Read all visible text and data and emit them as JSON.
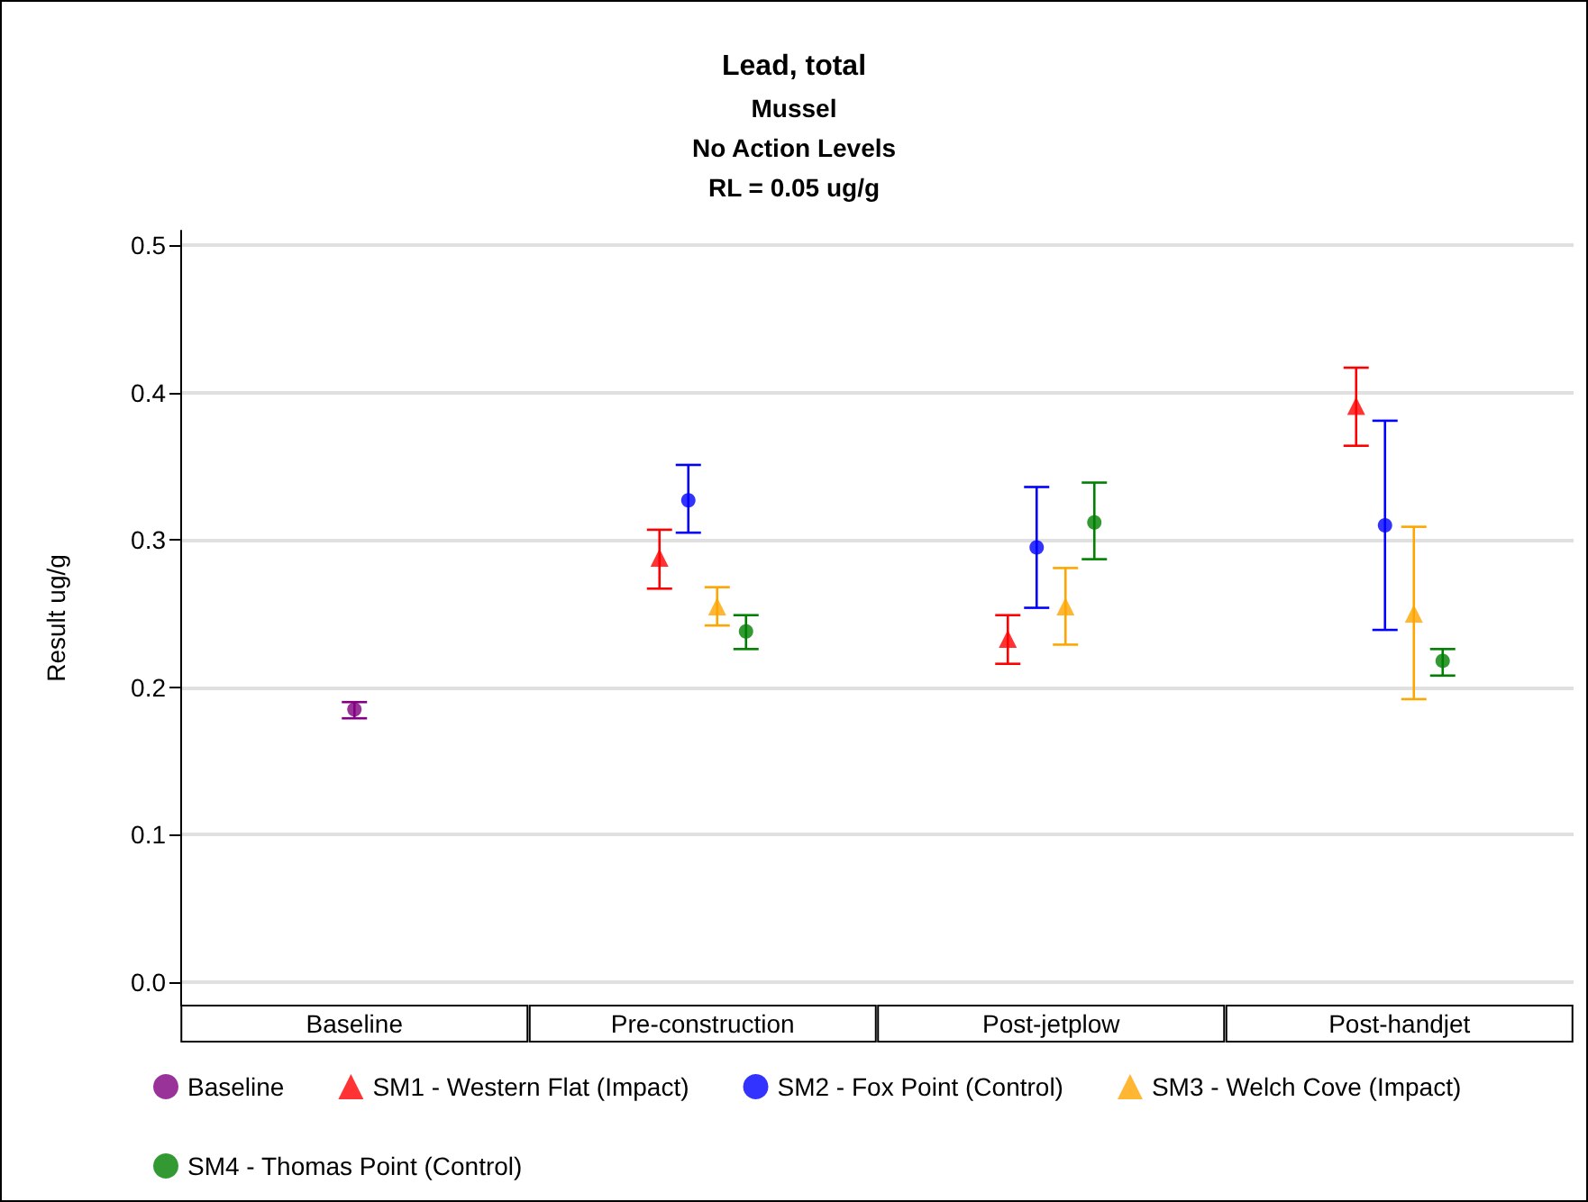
{
  "chart_data": {
    "type": "scatter",
    "title": "Lead, total",
    "subtitle": "Mussel\nNo Action Levels\nRL = 0.05 ug/g",
    "ylabel": "Result ug/g",
    "categories": [
      "Baseline",
      "Pre-construction",
      "Post-jetplow",
      "Post-handjet"
    ],
    "series": [
      {
        "name": "Baseline",
        "color": "#800080",
        "marker": "circle",
        "values": [
          0.185,
          null,
          null,
          null
        ],
        "errors": [
          [
            0.179,
            0.19
          ],
          null,
          null,
          null
        ]
      },
      {
        "name": "SM1 - Western Flat (Impact)",
        "color": "#ff0000",
        "marker": "triangle",
        "values": [
          null,
          0.288,
          0.233,
          0.391
        ],
        "errors": [
          null,
          [
            0.267,
            0.307
          ],
          [
            0.216,
            0.249
          ],
          [
            0.364,
            0.417
          ]
        ]
      },
      {
        "name": "SM2 - Fox Point (Control)",
        "color": "#0000ff",
        "marker": "circle",
        "values": [
          null,
          0.327,
          0.295,
          0.31
        ],
        "errors": [
          null,
          [
            0.305,
            0.351
          ],
          [
            0.254,
            0.336
          ],
          [
            0.239,
            0.381
          ]
        ]
      },
      {
        "name": "SM3 - Welch Cove (Impact)",
        "color": "#ffa500",
        "marker": "triangle",
        "values": [
          null,
          0.255,
          0.255,
          0.25
        ],
        "errors": [
          null,
          [
            0.242,
            0.268
          ],
          [
            0.229,
            0.281
          ],
          [
            0.192,
            0.309
          ]
        ]
      },
      {
        "name": "SM4 - Thomas Point (Control)",
        "color": "#008000",
        "marker": "circle",
        "values": [
          null,
          0.238,
          0.312,
          0.218
        ],
        "errors": [
          null,
          [
            0.226,
            0.249
          ],
          [
            0.287,
            0.339
          ],
          [
            0.208,
            0.226
          ]
        ]
      }
    ],
    "ylim": [
      -0.016,
      0.51
    ],
    "yticks": [
      {
        "value": 0,
        "label": "0.0"
      },
      0.1,
      0.2,
      0.3,
      0.4,
      0.5
    ],
    "grid": "y",
    "legend": "bottom"
  }
}
